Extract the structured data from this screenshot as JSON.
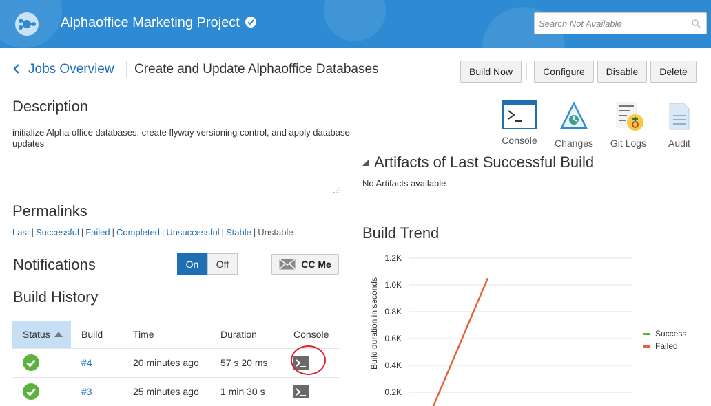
{
  "header": {
    "project_title": "Alphaoffice Marketing Project",
    "search_placeholder": "Search Not Available"
  },
  "breadcrumb": {
    "link": "Jobs Overview",
    "current": "Create and Update Alphaoffice Databases"
  },
  "toolbar": {
    "build_now": "Build Now",
    "configure": "Configure",
    "disable": "Disable",
    "delete": "Delete"
  },
  "description": {
    "title": "Description",
    "text": "initialize Alpha office databases, create flyway versioning control, and apply database updates"
  },
  "permalinks": {
    "title": "Permalinks",
    "items": [
      "Last",
      "Successful",
      "Failed",
      "Completed",
      "Unsuccessful",
      "Stable",
      "Unstable"
    ]
  },
  "notifications": {
    "title": "Notifications",
    "on": "On",
    "off": "Off",
    "selected": "On",
    "cc_me": "CC Me"
  },
  "build_history": {
    "title": "Build History",
    "columns": [
      "Status",
      "Build",
      "Time",
      "Duration",
      "Console"
    ],
    "rows": [
      {
        "status": "success",
        "build": "#4",
        "time": "20 minutes ago",
        "duration": "57 s 20 ms"
      },
      {
        "status": "success",
        "build": "#3",
        "time": "25 minutes ago",
        "duration": "1 min 30 s"
      }
    ]
  },
  "tools": [
    "Console",
    "Changes",
    "Git Logs",
    "Audit"
  ],
  "artifacts": {
    "title": "Artifacts of Last Successful Build",
    "empty": "No Artifacts available"
  },
  "build_trend": {
    "title": "Build Trend"
  },
  "colors": {
    "header_blue": "#2e8bd3",
    "link_blue": "#1f6fb5",
    "success": "#5cb23e",
    "failed": "#e4643c",
    "highlight": "#d9272e"
  },
  "chart_data": {
    "type": "line",
    "ylabel": "Build duration in seconds",
    "yticks": [
      "0.2K",
      "0.4K",
      "0.6K",
      "0.8K",
      "1.0K",
      "1.2K"
    ],
    "ylim": [
      0,
      1200
    ],
    "legend_placement": "right",
    "series": [
      {
        "name": "Success",
        "color": "#5cb23e",
        "points": []
      },
      {
        "name": "Failed",
        "color": "#e4643c",
        "points": [
          [
            0,
            0
          ],
          [
            1,
            1050
          ]
        ]
      }
    ],
    "grid": true
  }
}
